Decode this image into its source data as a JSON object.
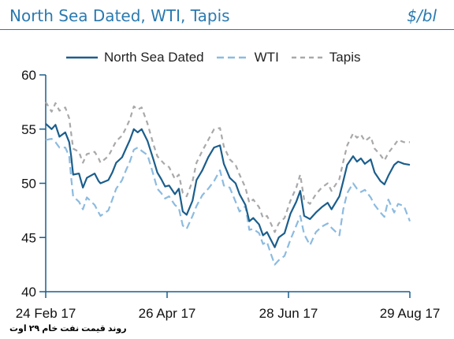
{
  "header": {
    "title": "North Sea Dated, WTI, Tapis",
    "unit": "$/bl"
  },
  "caption": "روند قیمت نفت خام ۲۹ اوت",
  "chart_data": {
    "type": "line",
    "title": "North Sea Dated, WTI, Tapis",
    "xlabel": "",
    "ylabel": "$/bl",
    "ylim": [
      40,
      60
    ],
    "yticks": [
      40,
      45,
      50,
      55,
      60
    ],
    "xticks": [
      "24 Feb 17",
      "26 Apr 17",
      "28 Jun 17",
      "29 Aug 17"
    ],
    "x_start": "2017-02-24",
    "x_end": "2017-08-29",
    "grid": false,
    "legend_position": "top",
    "colors": {
      "North Sea Dated": "#1b5e8c",
      "WTI": "#8cbbe0",
      "Tapis": "#a9a9a9",
      "axis": "#1b5e8c"
    },
    "series": [
      {
        "name": "North Sea Dated",
        "style": "solid",
        "points": [
          [
            "2017-02-24",
            55.5
          ],
          [
            "2017-02-27",
            55.0
          ],
          [
            "2017-03-01",
            55.4
          ],
          [
            "2017-03-03",
            54.3
          ],
          [
            "2017-03-06",
            54.7
          ],
          [
            "2017-03-08",
            53.8
          ],
          [
            "2017-03-09",
            52.5
          ],
          [
            "2017-03-10",
            50.8
          ],
          [
            "2017-03-13",
            50.9
          ],
          [
            "2017-03-15",
            49.6
          ],
          [
            "2017-03-17",
            50.5
          ],
          [
            "2017-03-21",
            50.9
          ],
          [
            "2017-03-23",
            50.2
          ],
          [
            "2017-03-24",
            50.0
          ],
          [
            "2017-03-28",
            50.3
          ],
          [
            "2017-03-30",
            51.0
          ],
          [
            "2017-04-01",
            51.9
          ],
          [
            "2017-04-04",
            52.4
          ],
          [
            "2017-04-06",
            53.2
          ],
          [
            "2017-04-08",
            54.0
          ],
          [
            "2017-04-10",
            55.0
          ],
          [
            "2017-04-12",
            54.7
          ],
          [
            "2017-04-14",
            55.0
          ],
          [
            "2017-04-17",
            53.9
          ],
          [
            "2017-04-20",
            52.2
          ],
          [
            "2017-04-22",
            51.0
          ],
          [
            "2017-04-24",
            50.4
          ],
          [
            "2017-04-26",
            49.7
          ],
          [
            "2017-04-28",
            49.8
          ],
          [
            "2017-05-01",
            49.0
          ],
          [
            "2017-05-03",
            49.5
          ],
          [
            "2017-05-05",
            47.4
          ],
          [
            "2017-05-07",
            47.1
          ],
          [
            "2017-05-10",
            48.4
          ],
          [
            "2017-05-12",
            50.3
          ],
          [
            "2017-05-15",
            51.2
          ],
          [
            "2017-05-18",
            52.4
          ],
          [
            "2017-05-21",
            53.3
          ],
          [
            "2017-05-24",
            53.5
          ],
          [
            "2017-05-26",
            51.8
          ],
          [
            "2017-05-29",
            50.5
          ],
          [
            "2017-06-01",
            50.0
          ],
          [
            "2017-06-03",
            49.0
          ],
          [
            "2017-06-06",
            48.0
          ],
          [
            "2017-06-08",
            46.5
          ],
          [
            "2017-06-10",
            46.8
          ],
          [
            "2017-06-13",
            46.2
          ],
          [
            "2017-06-15",
            45.2
          ],
          [
            "2017-06-17",
            45.5
          ],
          [
            "2017-06-19",
            44.8
          ],
          [
            "2017-06-21",
            44.1
          ],
          [
            "2017-06-23",
            45.0
          ],
          [
            "2017-06-26",
            45.4
          ],
          [
            "2017-06-29",
            47.2
          ],
          [
            "2017-07-02",
            48.3
          ],
          [
            "2017-07-04",
            49.3
          ],
          [
            "2017-07-06",
            47.0
          ],
          [
            "2017-07-09",
            46.7
          ],
          [
            "2017-07-12",
            47.3
          ],
          [
            "2017-07-15",
            47.8
          ],
          [
            "2017-07-18",
            48.2
          ],
          [
            "2017-07-20",
            47.6
          ],
          [
            "2017-07-24",
            48.8
          ],
          [
            "2017-07-26",
            50.2
          ],
          [
            "2017-07-28",
            51.7
          ],
          [
            "2017-07-31",
            52.5
          ],
          [
            "2017-08-02",
            52.0
          ],
          [
            "2017-08-04",
            52.3
          ],
          [
            "2017-08-06",
            51.8
          ],
          [
            "2017-08-09",
            52.2
          ],
          [
            "2017-08-11",
            51.0
          ],
          [
            "2017-08-14",
            50.2
          ],
          [
            "2017-08-16",
            49.9
          ],
          [
            "2017-08-18",
            50.7
          ],
          [
            "2017-08-21",
            51.7
          ],
          [
            "2017-08-23",
            52.0
          ],
          [
            "2017-08-26",
            51.8
          ],
          [
            "2017-08-29",
            51.7
          ]
        ]
      },
      {
        "name": "WTI",
        "style": "dashed",
        "points": [
          [
            "2017-02-24",
            54.0
          ],
          [
            "2017-02-27",
            54.1
          ],
          [
            "2017-03-01",
            53.8
          ],
          [
            "2017-03-03",
            53.3
          ],
          [
            "2017-03-06",
            53.3
          ],
          [
            "2017-03-08",
            52.5
          ],
          [
            "2017-03-09",
            50.5
          ],
          [
            "2017-03-10",
            48.8
          ],
          [
            "2017-03-13",
            48.3
          ],
          [
            "2017-03-15",
            47.6
          ],
          [
            "2017-03-17",
            48.7
          ],
          [
            "2017-03-21",
            48.0
          ],
          [
            "2017-03-23",
            47.3
          ],
          [
            "2017-03-24",
            47.0
          ],
          [
            "2017-03-28",
            47.5
          ],
          [
            "2017-03-30",
            48.5
          ],
          [
            "2017-04-01",
            49.5
          ],
          [
            "2017-04-04",
            50.3
          ],
          [
            "2017-04-06",
            51.2
          ],
          [
            "2017-04-08",
            52.0
          ],
          [
            "2017-04-10",
            53.1
          ],
          [
            "2017-04-12",
            53.3
          ],
          [
            "2017-04-14",
            53.0
          ],
          [
            "2017-04-17",
            52.6
          ],
          [
            "2017-04-20",
            50.8
          ],
          [
            "2017-04-22",
            49.5
          ],
          [
            "2017-04-24",
            49.1
          ],
          [
            "2017-04-26",
            48.6
          ],
          [
            "2017-04-28",
            48.8
          ],
          [
            "2017-05-01",
            48.0
          ],
          [
            "2017-05-03",
            47.7
          ],
          [
            "2017-05-05",
            46.1
          ],
          [
            "2017-05-07",
            45.8
          ],
          [
            "2017-05-10",
            47.0
          ],
          [
            "2017-05-12",
            47.9
          ],
          [
            "2017-05-15",
            48.9
          ],
          [
            "2017-05-18",
            49.5
          ],
          [
            "2017-05-21",
            50.2
          ],
          [
            "2017-05-24",
            51.2
          ],
          [
            "2017-05-26",
            49.8
          ],
          [
            "2017-05-29",
            49.6
          ],
          [
            "2017-06-01",
            48.3
          ],
          [
            "2017-06-03",
            47.4
          ],
          [
            "2017-06-06",
            47.9
          ],
          [
            "2017-06-08",
            45.7
          ],
          [
            "2017-06-10",
            45.8
          ],
          [
            "2017-06-13",
            45.4
          ],
          [
            "2017-06-15",
            44.4
          ],
          [
            "2017-06-17",
            44.6
          ],
          [
            "2017-06-19",
            43.5
          ],
          [
            "2017-06-21",
            42.5
          ],
          [
            "2017-06-23",
            42.9
          ],
          [
            "2017-06-26",
            43.3
          ],
          [
            "2017-06-29",
            44.8
          ],
          [
            "2017-07-02",
            46.1
          ],
          [
            "2017-07-04",
            47.0
          ],
          [
            "2017-07-06",
            45.3
          ],
          [
            "2017-07-09",
            44.3
          ],
          [
            "2017-07-12",
            45.5
          ],
          [
            "2017-07-15",
            46.0
          ],
          [
            "2017-07-18",
            46.3
          ],
          [
            "2017-07-20",
            45.9
          ],
          [
            "2017-07-24",
            45.2
          ],
          [
            "2017-07-26",
            47.6
          ],
          [
            "2017-07-28",
            49.1
          ],
          [
            "2017-07-31",
            50.0
          ],
          [
            "2017-08-02",
            49.5
          ],
          [
            "2017-08-04",
            49.2
          ],
          [
            "2017-08-06",
            49.4
          ],
          [
            "2017-08-09",
            48.7
          ],
          [
            "2017-08-11",
            48.0
          ],
          [
            "2017-08-14",
            47.3
          ],
          [
            "2017-08-16",
            46.9
          ],
          [
            "2017-08-18",
            48.5
          ],
          [
            "2017-08-21",
            47.3
          ],
          [
            "2017-08-23",
            48.1
          ],
          [
            "2017-08-26",
            47.9
          ],
          [
            "2017-08-29",
            46.5
          ]
        ]
      },
      {
        "name": "Tapis",
        "style": "dashed",
        "points": [
          [
            "2017-02-24",
            57.5
          ],
          [
            "2017-02-27",
            56.6
          ],
          [
            "2017-03-01",
            57.4
          ],
          [
            "2017-03-03",
            56.7
          ],
          [
            "2017-03-06",
            57.0
          ],
          [
            "2017-03-08",
            56.0
          ],
          [
            "2017-03-09",
            54.6
          ],
          [
            "2017-03-10",
            53.2
          ],
          [
            "2017-03-13",
            52.9
          ],
          [
            "2017-03-15",
            51.9
          ],
          [
            "2017-03-17",
            52.7
          ],
          [
            "2017-03-21",
            52.9
          ],
          [
            "2017-03-23",
            52.3
          ],
          [
            "2017-03-24",
            51.9
          ],
          [
            "2017-03-28",
            52.5
          ],
          [
            "2017-03-30",
            53.2
          ],
          [
            "2017-04-01",
            53.9
          ],
          [
            "2017-04-04",
            54.4
          ],
          [
            "2017-04-06",
            55.1
          ],
          [
            "2017-04-08",
            55.9
          ],
          [
            "2017-04-10",
            57.1
          ],
          [
            "2017-04-12",
            56.8
          ],
          [
            "2017-04-14",
            57.0
          ],
          [
            "2017-04-17",
            55.5
          ],
          [
            "2017-04-20",
            53.6
          ],
          [
            "2017-04-22",
            52.5
          ],
          [
            "2017-04-24",
            52.1
          ],
          [
            "2017-04-26",
            51.7
          ],
          [
            "2017-04-28",
            51.5
          ],
          [
            "2017-05-01",
            50.4
          ],
          [
            "2017-05-03",
            50.8
          ],
          [
            "2017-05-05",
            49.1
          ],
          [
            "2017-05-07",
            48.8
          ],
          [
            "2017-05-10",
            50.2
          ],
          [
            "2017-05-12",
            51.9
          ],
          [
            "2017-05-15",
            53.0
          ],
          [
            "2017-05-18",
            54.0
          ],
          [
            "2017-05-21",
            55.0
          ],
          [
            "2017-05-24",
            55.1
          ],
          [
            "2017-05-26",
            53.4
          ],
          [
            "2017-05-29",
            52.2
          ],
          [
            "2017-06-01",
            51.7
          ],
          [
            "2017-06-03",
            50.8
          ],
          [
            "2017-06-06",
            49.6
          ],
          [
            "2017-06-08",
            48.2
          ],
          [
            "2017-06-10",
            48.5
          ],
          [
            "2017-06-13",
            47.8
          ],
          [
            "2017-06-15",
            46.8
          ],
          [
            "2017-06-17",
            47.0
          ],
          [
            "2017-06-19",
            46.3
          ],
          [
            "2017-06-21",
            45.5
          ],
          [
            "2017-06-23",
            46.3
          ],
          [
            "2017-06-26",
            46.8
          ],
          [
            "2017-06-29",
            48.4
          ],
          [
            "2017-07-02",
            49.6
          ],
          [
            "2017-07-04",
            50.8
          ],
          [
            "2017-07-06",
            48.5
          ],
          [
            "2017-07-09",
            48.1
          ],
          [
            "2017-07-12",
            49.0
          ],
          [
            "2017-07-15",
            49.6
          ],
          [
            "2017-07-18",
            50.0
          ],
          [
            "2017-07-20",
            49.3
          ],
          [
            "2017-07-24",
            50.4
          ],
          [
            "2017-07-26",
            52.0
          ],
          [
            "2017-07-28",
            53.5
          ],
          [
            "2017-07-31",
            54.6
          ],
          [
            "2017-08-02",
            54.2
          ],
          [
            "2017-08-04",
            54.5
          ],
          [
            "2017-08-06",
            53.9
          ],
          [
            "2017-08-09",
            54.3
          ],
          [
            "2017-08-11",
            53.2
          ],
          [
            "2017-08-14",
            52.6
          ],
          [
            "2017-08-16",
            52.1
          ],
          [
            "2017-08-18",
            52.8
          ],
          [
            "2017-08-21",
            53.5
          ],
          [
            "2017-08-23",
            54.0
          ],
          [
            "2017-08-26",
            53.8
          ],
          [
            "2017-08-29",
            53.8
          ]
        ]
      }
    ]
  }
}
